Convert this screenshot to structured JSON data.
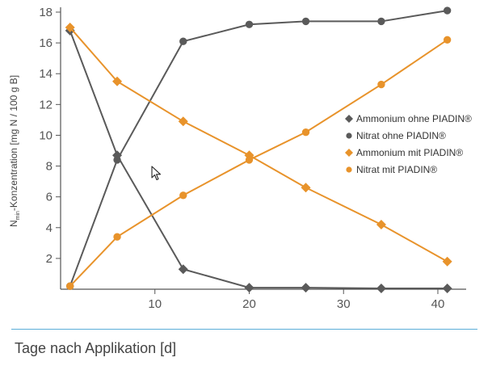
{
  "chart_data": {
    "type": "line",
    "title": "",
    "xlabel": "Tage nach Applikation [d]",
    "ylabel": {
      "prefix": "N",
      "subscript": "min",
      "suffix": "-Konzentration [mg N / 100 g B]"
    },
    "xlim": [
      0,
      43
    ],
    "ylim": [
      0,
      18
    ],
    "xticks": [
      10,
      20,
      30,
      40
    ],
    "yticks": [
      2,
      4,
      6,
      8,
      10,
      12,
      14,
      16,
      18
    ],
    "grid": false,
    "legend_position": "right-center",
    "series": [
      {
        "name": "Ammonium ohne PIADIN®",
        "marker": "diamond",
        "color": "#5a5a5a",
        "x": [
          1,
          6,
          13,
          20,
          26,
          34,
          41
        ],
        "y": [
          16.8,
          8.7,
          1.3,
          0.1,
          0.1,
          0.05,
          0.05
        ]
      },
      {
        "name": "Nitrat ohne PIADIN®",
        "marker": "circle",
        "color": "#5a5a5a",
        "x": [
          1,
          6,
          13,
          20,
          26,
          34,
          41
        ],
        "y": [
          0.2,
          8.4,
          16.1,
          17.2,
          17.4,
          17.4,
          18.1
        ]
      },
      {
        "name": "Ammonium mit PIADIN®",
        "marker": "diamond",
        "color": "#e8932b",
        "x": [
          1,
          6,
          13,
          20,
          26,
          34,
          41
        ],
        "y": [
          17.0,
          13.5,
          10.9,
          8.7,
          6.6,
          4.2,
          1.8
        ]
      },
      {
        "name": "Nitrat mit PIADIN®",
        "marker": "circle",
        "color": "#e8932b",
        "x": [
          1,
          6,
          13,
          20,
          26,
          34,
          41
        ],
        "y": [
          0.2,
          3.4,
          6.1,
          8.4,
          10.2,
          13.3,
          16.2
        ]
      }
    ]
  },
  "colors": {
    "axis": "#555555",
    "divider": "#5aaed8"
  }
}
